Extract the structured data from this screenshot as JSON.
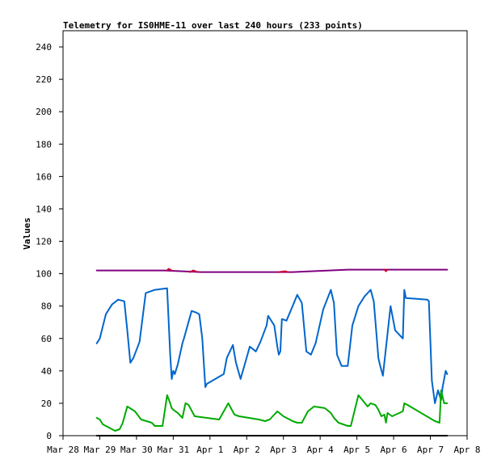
{
  "chart_data": {
    "type": "line",
    "title": "Telemetry for IS0HME-11 over last 240 hours (233 points)",
    "xlabel": "",
    "ylabel": "Values",
    "xlim": [
      "2024-03-28 00:00",
      "2024-04-08 00:00"
    ],
    "ylim": [
      0,
      250
    ],
    "x_ticks": [
      "Mar 28",
      "Mar 29",
      "Mar 30",
      "Mar 31",
      "Apr 1",
      "Apr 2",
      "Apr 3",
      "Apr 4",
      "Apr 5",
      "Apr 6",
      "Apr 7",
      "Apr 8"
    ],
    "y_ticks": [
      0,
      20,
      40,
      60,
      80,
      100,
      120,
      140,
      160,
      180,
      200,
      220,
      240
    ],
    "grid": false,
    "legend": "none",
    "series": [
      {
        "color": "#0066cc",
        "x": [
          "2024-03-28 22:00",
          "2024-03-29 00:00",
          "2024-03-29 04:00",
          "2024-03-29 08:00",
          "2024-03-29 12:00",
          "2024-03-29 16:00",
          "2024-03-29 18:00",
          "2024-03-29 20:00",
          "2024-03-29 22:00",
          "2024-03-30 02:00",
          "2024-03-30 06:00",
          "2024-03-30 12:00",
          "2024-03-30 20:00",
          "2024-03-30 22:00",
          "2024-03-30 23:00",
          "2024-03-31 00:00",
          "2024-03-31 01:00",
          "2024-03-31 03:00",
          "2024-03-31 06:00",
          "2024-03-31 07:00",
          "2024-03-31 12:00",
          "2024-03-31 15:00",
          "2024-03-31 17:00",
          "2024-03-31 19:00",
          "2024-03-31 21:00",
          "2024-03-31 22:00",
          "2024-04-01 09:00",
          "2024-04-01 11:00",
          "2024-04-01 13:00",
          "2024-04-01 15:00",
          "2024-04-01 17:00",
          "2024-04-01 20:00",
          "2024-04-02 02:00",
          "2024-04-02 06:00",
          "2024-04-02 09:00",
          "2024-04-02 11:00",
          "2024-04-02 13:00",
          "2024-04-02 14:00",
          "2024-04-02 18:00",
          "2024-04-02 20:00",
          "2024-04-02 21:00",
          "2024-04-02 22:00",
          "2024-04-02 23:00",
          "2024-04-03 02:00",
          "2024-04-03 06:00",
          "2024-04-03 09:00",
          "2024-04-03 12:00",
          "2024-04-03 15:00",
          "2024-04-03 18:00",
          "2024-04-03 21:00",
          "2024-04-04 02:00",
          "2024-04-04 07:00",
          "2024-04-04 09:00",
          "2024-04-04 11:00",
          "2024-04-04 14:00",
          "2024-04-04 18:00",
          "2024-04-04 21:00",
          "2024-04-05 01:00",
          "2024-04-05 05:00",
          "2024-04-05 09:00",
          "2024-04-05 11:00",
          "2024-04-05 13:00",
          "2024-04-05 14:00",
          "2024-04-05 15:00",
          "2024-04-05 17:00",
          "2024-04-05 22:00",
          "2024-04-06 01:00",
          "2024-04-06 06:00",
          "2024-04-06 07:00",
          "2024-04-06 08:00",
          "2024-04-06 22:00",
          "2024-04-06 23:00",
          "2024-04-07 01:00",
          "2024-04-07 03:00",
          "2024-04-07 05:00",
          "2024-04-07 07:00",
          "2024-04-07 08:00",
          "2024-04-07 10:00",
          "2024-04-07 11:00"
        ],
        "y": [
          57,
          60,
          75,
          81,
          84,
          83,
          65,
          45,
          48,
          58,
          88,
          90,
          91,
          50,
          35,
          40,
          38,
          44,
          57,
          60,
          77,
          76,
          75,
          60,
          30,
          32,
          38,
          48,
          52,
          56,
          45,
          35,
          55,
          52,
          58,
          63,
          68,
          74,
          68,
          55,
          50,
          52,
          72,
          71,
          80,
          87,
          82,
          52,
          50,
          57,
          78,
          90,
          82,
          50,
          43,
          43,
          68,
          80,
          86,
          90,
          83,
          60,
          48,
          44,
          37,
          80,
          65,
          60,
          90,
          85,
          84,
          83,
          34,
          20,
          28,
          22,
          30,
          40,
          38
        ]
      },
      {
        "color": "#00aa00",
        "x": [
          "2024-03-28 22:00",
          "2024-03-29 00:00",
          "2024-03-29 02:00",
          "2024-03-29 06:00",
          "2024-03-29 10:00",
          "2024-03-29 13:00",
          "2024-03-29 15:00",
          "2024-03-29 18:00",
          "2024-03-29 23:00",
          "2024-03-30 03:00",
          "2024-03-30 10:00",
          "2024-03-30 12:00",
          "2024-03-30 17:00",
          "2024-03-30 20:00",
          "2024-03-30 22:00",
          "2024-03-30 23:00",
          "2024-03-31 00:00",
          "2024-03-31 03:00",
          "2024-03-31 06:00",
          "2024-03-31 08:00",
          "2024-03-31 10:00",
          "2024-03-31 14:00",
          "2024-03-31 22:00",
          "2024-04-01 06:00",
          "2024-04-01 09:00",
          "2024-04-01 12:00",
          "2024-04-01 16:00",
          "2024-04-01 19:00",
          "2024-04-02 08:00",
          "2024-04-02 12:00",
          "2024-04-02 15:00",
          "2024-04-02 20:00",
          "2024-04-03 00:00",
          "2024-04-03 06:00",
          "2024-04-03 09:00",
          "2024-04-03 12:00",
          "2024-04-03 16:00",
          "2024-04-03 20:00",
          "2024-04-04 03:00",
          "2024-04-04 07:00",
          "2024-04-04 09:00",
          "2024-04-04 12:00",
          "2024-04-04 18:00",
          "2024-04-04 20:00",
          "2024-04-05 01:00",
          "2024-04-05 07:00",
          "2024-04-05 09:00",
          "2024-04-05 12:00",
          "2024-04-05 14:00",
          "2024-04-05 16:00",
          "2024-04-05 18:00",
          "2024-04-05 19:00",
          "2024-04-05 20:00",
          "2024-04-05 23:00",
          "2024-04-06 06:00",
          "2024-04-06 07:00",
          "2024-04-06 09:00",
          "2024-04-07 03:00",
          "2024-04-07 06:00",
          "2024-04-07 07:00",
          "2024-04-07 09:00",
          "2024-04-07 11:00"
        ],
        "y": [
          11,
          10,
          7,
          5,
          3,
          4,
          8,
          18,
          15,
          10,
          8,
          6,
          6,
          25,
          20,
          17,
          16,
          14,
          11,
          20,
          19,
          12,
          11,
          10,
          15,
          20,
          13,
          12,
          10,
          9,
          10,
          15,
          12,
          9,
          8,
          8,
          15,
          18,
          17,
          14,
          11,
          8,
          6,
          6,
          25,
          18,
          20,
          19,
          16,
          12,
          13,
          8,
          14,
          12,
          15,
          20,
          19,
          9,
          8,
          28,
          20,
          20
        ]
      },
      {
        "color": "#800080",
        "x": [
          "2024-03-28 22:00",
          "2024-03-29 06:00",
          "2024-03-29 18:00",
          "2024-03-30 06:00",
          "2024-03-30 18:00",
          "2024-03-31 06:00",
          "2024-03-31 18:00",
          "2024-04-01 06:00",
          "2024-04-01 18:00",
          "2024-04-02 06:00",
          "2024-04-02 18:00",
          "2024-04-03 06:00",
          "2024-04-03 18:00",
          "2024-04-04 06:00",
          "2024-04-04 18:00",
          "2024-04-05 06:00",
          "2024-04-05 18:00",
          "2024-04-06 06:00",
          "2024-04-06 18:00",
          "2024-04-07 06:00",
          "2024-04-07 11:00"
        ],
        "y": [
          102,
          102,
          102,
          102,
          102,
          101.5,
          101,
          101,
          101,
          101,
          101,
          101,
          101.5,
          102,
          102.5,
          102.5,
          102.5,
          102.5,
          102.5,
          102.5,
          102.5
        ]
      },
      {
        "color": "#cc0033",
        "segments": [
          {
            "x": [
              "2024-03-30 20:00",
              "2024-03-30 21:00",
              "2024-03-30 23:00"
            ],
            "y": [
              102,
              103,
              102
            ]
          },
          {
            "x": [
              "2024-03-31 11:00",
              "2024-03-31 13:00",
              "2024-03-31 16:00"
            ],
            "y": [
              101,
              102,
              101
            ]
          },
          {
            "x": [
              "2024-04-02 21:00",
              "2024-04-03 01:00",
              "2024-04-03 03:00"
            ],
            "y": [
              101,
              101.5,
              101
            ]
          },
          {
            "x": [
              "2024-04-05 18:00",
              "2024-04-05 19:00",
              "2024-04-05 20:00"
            ],
            "y": [
              102.5,
              101.5,
              102.5
            ]
          }
        ]
      },
      {
        "color": "#000000",
        "x": [
          "2024-03-28 22:00",
          "2024-04-07 11:00"
        ],
        "y": [
          0,
          0
        ]
      }
    ]
  }
}
